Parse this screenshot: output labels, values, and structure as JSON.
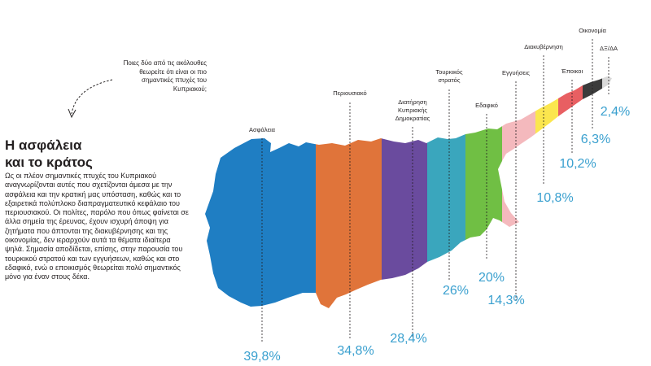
{
  "question": "Ποιες δύο από τις ακόλουθες θεωρείτε ότι είναι οι πιο σημαντικές πτυχές του Κυπριακού;",
  "title": "Η ασφάλεια\nκαι το κράτος",
  "body": "Ως οι πλέον σημαντικές πτυχές του Κυπριακού αναγνωρίζονται αυτές που σχετίζονται άμεσα με την ασφάλεια και την κρατική μας υπόσταση, καθώς και το εξαιρετικά πολύπλοκο διαπραγματευτικό κεφάλαιο του περιουσιακού. Οι πολίτες, παρόλο που όπως φαίνεται σε άλλα σημεία της έρευνας, έχουν ισχυρή άποψη για ζητήματα που άπτονται της διακυβέρνησης και της οικονομίας, δεν ιεραρχούν αυτά τα θέματα ιδιαίτερα ψηλά. Σημασία αποδίδεται, επίσης, στην παρουσία του τουρκικού στρατού και των εγγυήσεων, καθώς και στο εδαφικό, ενώ ο εποικισμός θεωρείται πολύ σημαντικός μόνο για έναν στους δέκα.",
  "chart_data": {
    "type": "bar",
    "categories": [
      "Ασφάλεια",
      "Περιουσιακό",
      "Διατήρηση Κυπριακής Δημοκρατίας",
      "Τουρκικός στρατός",
      "Εδαφικό",
      "Εγγυήσεις",
      "Διακυβέρνηση",
      "Έποικοι",
      "Οικονομία",
      "ΔΞ/ΔΑ"
    ],
    "category_label_lines": [
      [
        "Ασφάλεια"
      ],
      [
        "Περιουσιακό"
      ],
      [
        "Διατήρηση",
        "Κυπριακής",
        "Δημοκρατίας"
      ],
      [
        "Τουρκικός",
        "στρατός"
      ],
      [
        "Εδαφικό"
      ],
      [
        "Εγγυήσεις"
      ],
      [
        "Διακυβέρνηση"
      ],
      [
        "Έποικοι"
      ],
      [
        "Οικονομία"
      ],
      [
        "ΔΞ/ΔΑ"
      ]
    ],
    "values": [
      39.8,
      34.8,
      28.4,
      26,
      20,
      14.3,
      10.8,
      10.2,
      6.3,
      2.4
    ],
    "value_labels": [
      "39,8%",
      "34,8%",
      "28,4%",
      "26%",
      "20%",
      "14,3%",
      "10,8%",
      "10,2%",
      "6,3%",
      "2,4%"
    ],
    "unit": "%",
    "colors": [
      "#1f7ec3",
      "#e0743a",
      "#6a4b9e",
      "#3aa6bd",
      "#70bf44",
      "#f4b9bd",
      "#fbe64e",
      "#e85f62",
      "#3b3b3b",
      "#d9d9d9"
    ],
    "label_color": "#3aa0cf",
    "rendered_as": "map of Cyprus divided into vertical colored bands"
  }
}
